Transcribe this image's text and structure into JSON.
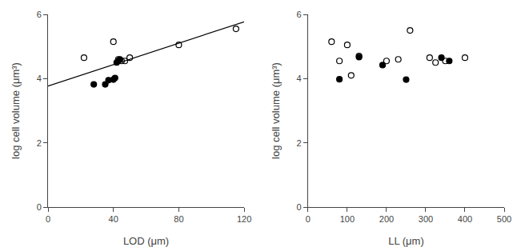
{
  "chart_data": [
    {
      "type": "scatter",
      "xlabel": "LOD (μm)",
      "ylabel": "log cell volume (μm³)",
      "xlim": [
        0,
        120
      ],
      "ylim": [
        0,
        6
      ],
      "xticks": [
        0,
        40,
        80,
        120
      ],
      "yticks": [
        0,
        2,
        4,
        6
      ],
      "grid": false,
      "series": [
        {
          "type": "line",
          "color": "#000000",
          "x": [
            0,
            120
          ],
          "values": [
            3.77,
            5.77
          ]
        },
        {
          "type": "scatter",
          "marker": "open circle",
          "color": "#000000",
          "x": [
            22,
            40,
            43,
            45,
            47,
            50,
            80,
            115
          ],
          "values": [
            4.65,
            5.15,
            4.6,
            4.55,
            4.55,
            4.65,
            5.05,
            5.55
          ]
        },
        {
          "type": "scatter",
          "marker": "circle",
          "color": "#000000",
          "x": [
            28,
            35,
            37,
            40,
            41,
            42,
            43,
            44
          ],
          "values": [
            3.82,
            3.82,
            3.95,
            3.97,
            4.02,
            4.5,
            4.55,
            4.6
          ]
        }
      ]
    },
    {
      "type": "scatter",
      "xlabel": "LL (μm)",
      "ylabel": "log cell volume (μm³)",
      "xlim": [
        0,
        500
      ],
      "ylim": [
        0,
        6
      ],
      "xticks": [
        0,
        100,
        200,
        300,
        400,
        500
      ],
      "yticks": [
        0,
        2,
        4,
        6
      ],
      "grid": false,
      "series": [
        {
          "type": "scatter",
          "marker": "open circle",
          "color": "#000000",
          "x": [
            60,
            80,
            100,
            110,
            130,
            200,
            230,
            260,
            310,
            325,
            350,
            400
          ],
          "values": [
            5.15,
            4.55,
            5.05,
            4.1,
            4.7,
            4.55,
            4.6,
            5.5,
            4.65,
            4.5,
            4.55,
            4.65
          ]
        },
        {
          "type": "scatter",
          "marker": "circle",
          "color": "#000000",
          "x": [
            80,
            130,
            190,
            250,
            340,
            360
          ],
          "values": [
            3.98,
            4.67,
            4.42,
            3.97,
            4.65,
            4.55
          ]
        }
      ]
    }
  ]
}
